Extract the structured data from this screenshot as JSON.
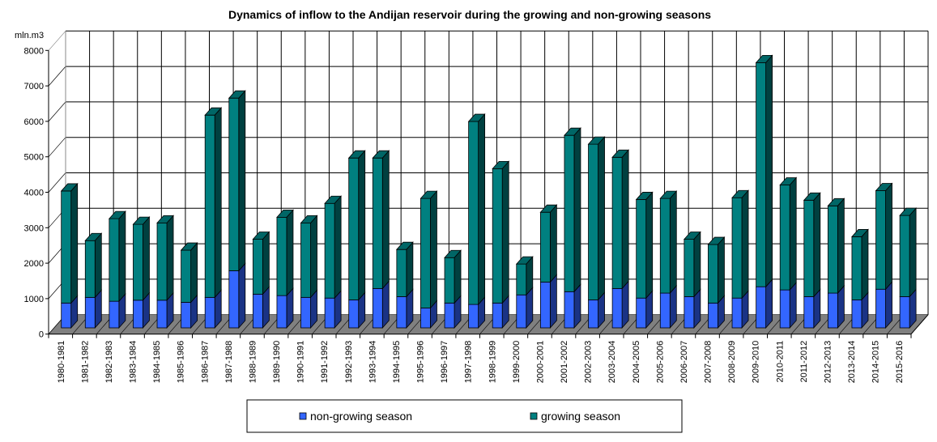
{
  "chart_data": {
    "type": "bar",
    "stacked": true,
    "three_d": true,
    "title": "Dynamics of inflow to the Andijan reservoir during the growing and non-growing seasons",
    "ylabel": "mln.m3",
    "xlabel": "",
    "ylim": [
      0,
      8000
    ],
    "yticks": [
      "0",
      "1000",
      "2000",
      "3000",
      "4000",
      "5000",
      "6000",
      "7000",
      "8000"
    ],
    "grid": true,
    "legend_position": "bottom",
    "categories": [
      "1980-1981",
      "1981-1982",
      "1982-1983",
      "1983-1984",
      "1984-1985",
      "1985-1986",
      "1986-1987",
      "1987-1988",
      "1988-1989",
      "1989-1990",
      "1990-1991",
      "1991-1992",
      "1992-1993",
      "1993-1994",
      "1994-1995",
      "1995-1996",
      "1996-1997",
      "1997-1998",
      "1998-1999",
      "1999-2000",
      "2000-2001",
      "2001-2002",
      "2002-2003",
      "2003-2004",
      "2004-2005",
      "2005-2006",
      "2006-2007",
      "2007-2008",
      "2008-2009",
      "2009-2010",
      "2010-2011",
      "2011-2012",
      "2012-2013",
      "2013-2014",
      "2014-2015",
      "2015-2016"
    ],
    "series": [
      {
        "name": "non-growing season",
        "color": "#3366FF",
        "side_color": "#1A3385",
        "values": [
          700,
          860,
          750,
          780,
          780,
          720,
          860,
          1610,
          950,
          910,
          860,
          840,
          790,
          1110,
          880,
          560,
          700,
          660,
          700,
          930,
          1290,
          1020,
          790,
          1110,
          840,
          980,
          880,
          700,
          840,
          1160,
          1070,
          880,
          980,
          790,
          1090,
          880
        ]
      },
      {
        "name": "growing season",
        "color": "#008080",
        "side_color": "#004040",
        "top_color": "#006666",
        "values": [
          3160,
          1600,
          2330,
          2140,
          2180,
          1470,
          5140,
          4870,
          1550,
          2210,
          2100,
          2670,
          4000,
          3680,
          1330,
          3090,
          1280,
          5160,
          3790,
          870,
          1970,
          4410,
          4390,
          3700,
          2780,
          2670,
          1620,
          1650,
          2830,
          6320,
          2960,
          2720,
          2460,
          1780,
          2780,
          2290
        ]
      }
    ]
  }
}
